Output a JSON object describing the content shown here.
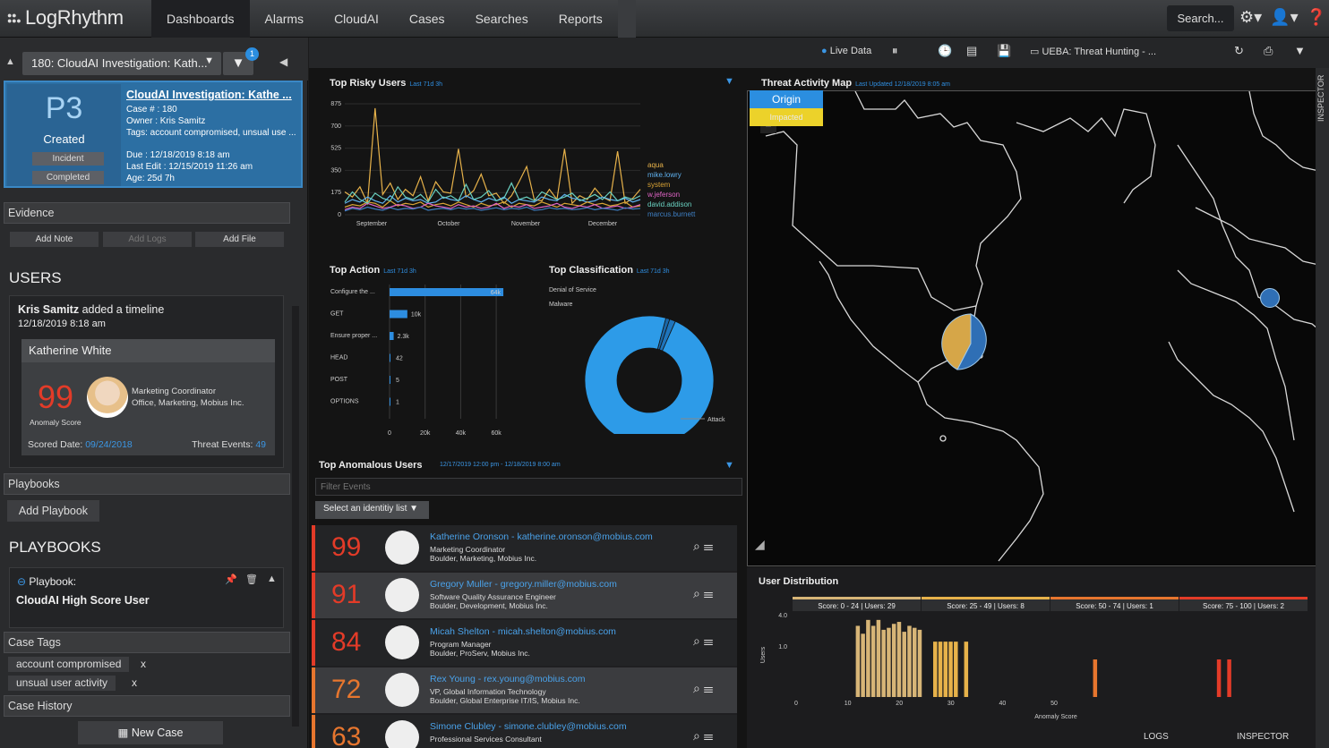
{
  "app": {
    "logo": "LogRhythm"
  },
  "nav": {
    "items": [
      "Dashboards",
      "Alarms",
      "CloudAI",
      "Cases",
      "Searches",
      "Reports"
    ],
    "active": "Dashboards"
  },
  "topbar": {
    "search_label": "Search..."
  },
  "case": {
    "selector": "180: CloudAI Investigation: Kath...",
    "filter_count": "1",
    "priority": "P3",
    "status": "Created",
    "tag_incident": "Incident",
    "tag_completed": "Completed",
    "title": "CloudAI Investigation: Kathe ...",
    "number": "Case # : 180",
    "owner": "Owner : Kris Samitz",
    "tags": "Tags: account compromised, unsual use ...",
    "due": "Due : 12/18/2019 8:18 am",
    "last_edit": "Last Edit : 12/15/2019 11:26 am",
    "age": "Age: 25d 7h"
  },
  "evidence": {
    "title": "Evidence",
    "add_note": "Add Note",
    "add_logs": "Add Logs",
    "add_file": "Add File"
  },
  "users": {
    "title": "USERS",
    "timeline_user": "Kris Samitz",
    "timeline_text": "added a timeline",
    "timeline_date": "12/18/2019 8:18 am",
    "user_name": "Katherine White",
    "score": "99",
    "score_label": "Anomaly Score",
    "role": "Marketing Coordinator",
    "location": "Office, Marketing, Mobius Inc.",
    "scored_label": "Scored Date:",
    "scored_date": "09/24/2018",
    "threat_label": "Threat Events:",
    "threat_count": "49"
  },
  "playbooks": {
    "section": "Playbooks",
    "add": "Add Playbook",
    "title": "PLAYBOOKS",
    "card_label": "Playbook:",
    "card_name": "CloudAI High Score User"
  },
  "case_tags": {
    "title": "Case Tags",
    "tags": [
      "account compromised",
      "unsual user activity"
    ],
    "remove": "x"
  },
  "case_history": {
    "title": "Case History"
  },
  "new_case": "New Case",
  "toolbar": {
    "live": "Live Data",
    "dashboard": "UEBA: Threat Hunting - ..."
  },
  "panels": {
    "risky_users": {
      "title": "Top Risky Users",
      "sub": "Last 71d 3h"
    },
    "top_action": {
      "title": "Top Action",
      "sub": "Last 71d 3h"
    },
    "top_class": {
      "title": "Top Classification",
      "sub": "Last 71d 3h"
    },
    "map": {
      "title": "Threat Activity Map",
      "sub": "Last Updated 12/18/2019 8:05 am",
      "origin": "Origin",
      "impacted": "Impacted"
    },
    "anomalous": {
      "title": "Top Anomalous Users",
      "sub": "12/17/2019 12:00 pm - 12/18/2019 8:00 am",
      "filter_placeholder": "Filter Events",
      "identity_select": "Select an identitiy list"
    },
    "user_dist": {
      "title": "User Distribution"
    }
  },
  "anomalous_users": [
    {
      "score": "99",
      "name": "Katherine Oronson - katherine.oronson@mobius.com",
      "title": "Marketing Coordinator",
      "loc": "Boulder, Marketing, Mobius Inc.",
      "color": "#e33b28"
    },
    {
      "score": "91",
      "name": "Gregory Muller - gregory.miller@mobius.com",
      "title": "Software Quality Assurance Engineer",
      "loc": "Boulder, Development, Mobius Inc.",
      "color": "#e33b28"
    },
    {
      "score": "84",
      "name": "Micah Shelton - micah.shelton@mobius.com",
      "title": "Program Manager",
      "loc": "Boulder, ProServ, Mobius Inc.",
      "color": "#e33b28"
    },
    {
      "score": "72",
      "name": "Rex Young - rex.young@mobius.com",
      "title": "VP, Global Information Technology",
      "loc": "Boulder, Global Enterprise IT/IS, Mobius Inc.",
      "color": "#e7762e"
    },
    {
      "score": "63",
      "name": "Simone Clubley - simone.clubley@mobius.com",
      "title": "Professional Services Consultant",
      "loc": "",
      "color": "#e7762e"
    }
  ],
  "score_bands": [
    "Score: 0 - 24 | Users: 29",
    "Score: 25 - 49 | Users: 8",
    "Score: 50 - 74 | Users: 1",
    "Score: 75 - 100 | Users: 2"
  ],
  "footer": {
    "logs": "LOGS",
    "inspector": "INSPECTOR"
  },
  "side_tab": "INSPECTOR",
  "chart_data": [
    {
      "type": "line",
      "title": "Top Risky Users",
      "x_ticks": [
        "September",
        "October",
        "November",
        "December"
      ],
      "y_ticks": [
        "0",
        "175",
        "350",
        "525",
        "700",
        "875"
      ],
      "ylim": [
        0,
        875
      ],
      "series": [
        {
          "name": "aqua",
          "color": "#e7b24a",
          "values": [
            180,
            140,
            220,
            90,
            840,
            160,
            250,
            120,
            200,
            150,
            300,
            110,
            260,
            180,
            170,
            520,
            140,
            190,
            320,
            150,
            170,
            90,
            150,
            260,
            380,
            120,
            110,
            200,
            120,
            520,
            90,
            150,
            120,
            210,
            140,
            110,
            500,
            90,
            130,
            200
          ]
        },
        {
          "name": "mike.lowry",
          "color": "#5fb2f0",
          "values": [
            90,
            120,
            100,
            140,
            110,
            90,
            150,
            100,
            130,
            110,
            120,
            90,
            100,
            140,
            120,
            110,
            150,
            120,
            100,
            130,
            110,
            140,
            90,
            120,
            110,
            100,
            140,
            120,
            110,
            160,
            130,
            120,
            100,
            110,
            140,
            120,
            110,
            130,
            100,
            120
          ]
        },
        {
          "name": "system",
          "color": "#d9a335",
          "values": [
            60,
            80,
            70,
            100,
            90,
            60,
            110,
            70,
            90,
            80,
            100,
            60,
            80,
            90,
            70,
            100,
            80,
            60,
            90,
            70,
            80,
            100,
            60,
            90,
            80,
            70,
            100,
            80,
            60,
            90,
            80,
            70,
            100,
            80,
            90,
            70,
            80,
            100,
            60,
            70
          ]
        },
        {
          "name": "w.jeferson",
          "color": "#e064c6",
          "values": [
            40,
            60,
            50,
            90,
            70,
            50,
            60,
            80,
            70,
            50,
            60,
            90,
            70,
            60,
            50,
            80,
            60,
            70,
            50,
            60,
            90,
            50,
            70,
            60,
            80,
            50,
            60,
            70,
            90,
            60,
            50,
            70,
            60,
            80,
            50,
            60,
            70,
            50,
            60,
            80
          ]
        },
        {
          "name": "david.addison",
          "color": "#69d0c0",
          "values": [
            100,
            180,
            120,
            90,
            170,
            130,
            110,
            220,
            140,
            120,
            160,
            100,
            200,
            130,
            150,
            110,
            240,
            120,
            140,
            190,
            110,
            130,
            250,
            120,
            140,
            110,
            180,
            150,
            120,
            140,
            170,
            110,
            130,
            160,
            120,
            180,
            110,
            140,
            120,
            150
          ]
        },
        {
          "name": "marcus.burnett",
          "color": "#3e7fc3",
          "values": [
            30,
            50,
            40,
            60,
            45,
            35,
            55,
            40,
            50,
            45,
            60,
            35,
            45,
            50,
            40,
            55,
            45,
            50,
            35,
            45,
            55,
            40,
            50,
            45,
            60,
            35,
            40,
            55,
            45,
            50,
            40,
            45,
            55,
            40,
            50,
            45,
            35,
            55,
            45,
            50
          ]
        }
      ]
    },
    {
      "type": "bar",
      "title": "Top Action",
      "categories": [
        "Configure the ...",
        "GET",
        "Ensure proper ...",
        "HEAD",
        "POST",
        "OPTIONS"
      ],
      "values": [
        64000,
        10000,
        2300,
        42,
        5,
        1
      ],
      "data_labels": [
        "64k",
        "10k",
        "2.3k",
        "42",
        "5",
        "1"
      ],
      "x_ticks": [
        "0",
        "20k",
        "40k",
        "60k"
      ],
      "xlim": [
        0,
        67000
      ],
      "color": "#2d8de0"
    },
    {
      "type": "pie",
      "title": "Top Classification",
      "labels": [
        "Denial of Service",
        "Malware",
        "Attack"
      ],
      "values": [
        1,
        1.5,
        97.5
      ],
      "colors": [
        "#1a67a8",
        "#1f75bc",
        "#2d9be8"
      ]
    },
    {
      "type": "bar",
      "title": "User Distribution",
      "xlabel": "Anomaly Score",
      "ylabel": "Users",
      "x_ticks": [
        "0",
        "10",
        "20",
        "30",
        "40",
        "50"
      ],
      "y_ticks": [
        "1.0",
        "4.0"
      ],
      "x": [
        12,
        13,
        14,
        15,
        16,
        17,
        18,
        19,
        20,
        21,
        22,
        23,
        24,
        27,
        28,
        29,
        30,
        31,
        33,
        58,
        82,
        84
      ],
      "values": [
        3.6,
        3.2,
        3.9,
        3.6,
        3.9,
        3.4,
        3.5,
        3.7,
        3.8,
        3.3,
        3.6,
        3.5,
        3.4,
        2.8,
        2.8,
        2.8,
        2.8,
        2.8,
        2.8,
        1.9,
        1.9,
        1.9
      ],
      "colors": [
        "#d7b577",
        "#e7b24a",
        "#e7762e",
        "#e33b28"
      ]
    }
  ]
}
